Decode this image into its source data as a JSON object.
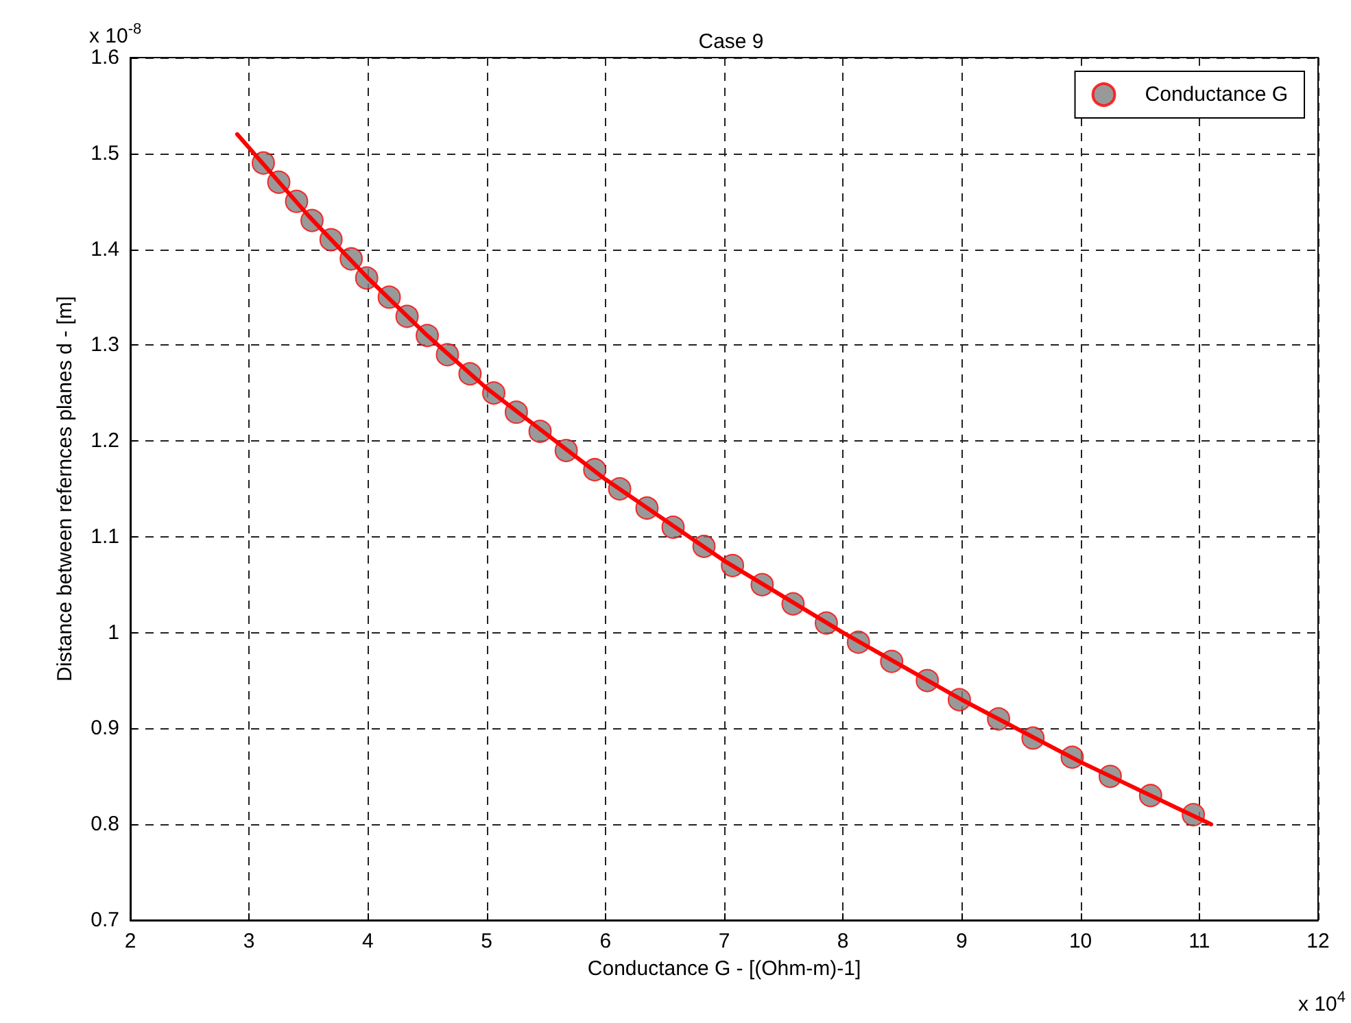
{
  "chart_data": {
    "type": "scatter",
    "title": "Case 9",
    "xlabel": "Conductance G - [(Ohm-m)-1]",
    "ylabel": "Distance between refernces planes d - [m]",
    "annotations": [
      "x 10$^{-8}$",
      "x 10$^{4}$"
    ],
    "series": [
      {
        "name": "Conductance G",
        "marker": "circle",
        "color": "#808080",
        "x": [
          3.12,
          3.25,
          3.4,
          3.53,
          3.69,
          3.86,
          3.99,
          4.18,
          4.33,
          4.5,
          4.67,
          4.86,
          5.06,
          5.25,
          5.45,
          5.67,
          5.91,
          6.12,
          6.35,
          6.57,
          6.83,
          7.07,
          7.32,
          7.58,
          7.86,
          8.13,
          8.41,
          8.71,
          8.98,
          9.31,
          9.6,
          9.93,
          10.25,
          10.59,
          10.95
        ],
        "values": [
          1.49,
          1.47,
          1.45,
          1.43,
          1.41,
          1.39,
          1.37,
          1.35,
          1.33,
          1.31,
          1.29,
          1.27,
          1.25,
          1.23,
          1.21,
          1.19,
          1.17,
          1.15,
          1.13,
          1.11,
          1.09,
          1.07,
          1.05,
          1.03,
          1.01,
          0.99,
          0.97,
          0.95,
          0.93,
          0.91,
          0.89,
          0.87,
          0.85,
          0.83,
          0.81
        ]
      },
      {
        "type": "line",
        "marker": "none",
        "color": "#ff0000",
        "x": [
          2.9,
          3.5,
          4,
          4.5,
          5,
          6,
          7,
          8,
          9,
          10,
          11.1
        ],
        "values": [
          1.52,
          1.435,
          1.37,
          1.31,
          1.255,
          1.16,
          1.075,
          1.0,
          0.93,
          0.865,
          0.8
        ]
      }
    ],
    "xlim": [
      2,
      12
    ],
    "xticks": [
      2,
      3,
      4,
      5,
      6,
      7,
      8,
      9,
      10,
      11,
      12
    ],
    "ylim": [
      0.7,
      1.6
    ],
    "yticks": [
      0.7,
      0.8,
      0.9,
      1,
      1.1,
      1.2,
      1.3,
      1.4,
      1.5,
      1.6
    ],
    "grid": true,
    "legend": "top right",
    "line_style": "solid"
  }
}
